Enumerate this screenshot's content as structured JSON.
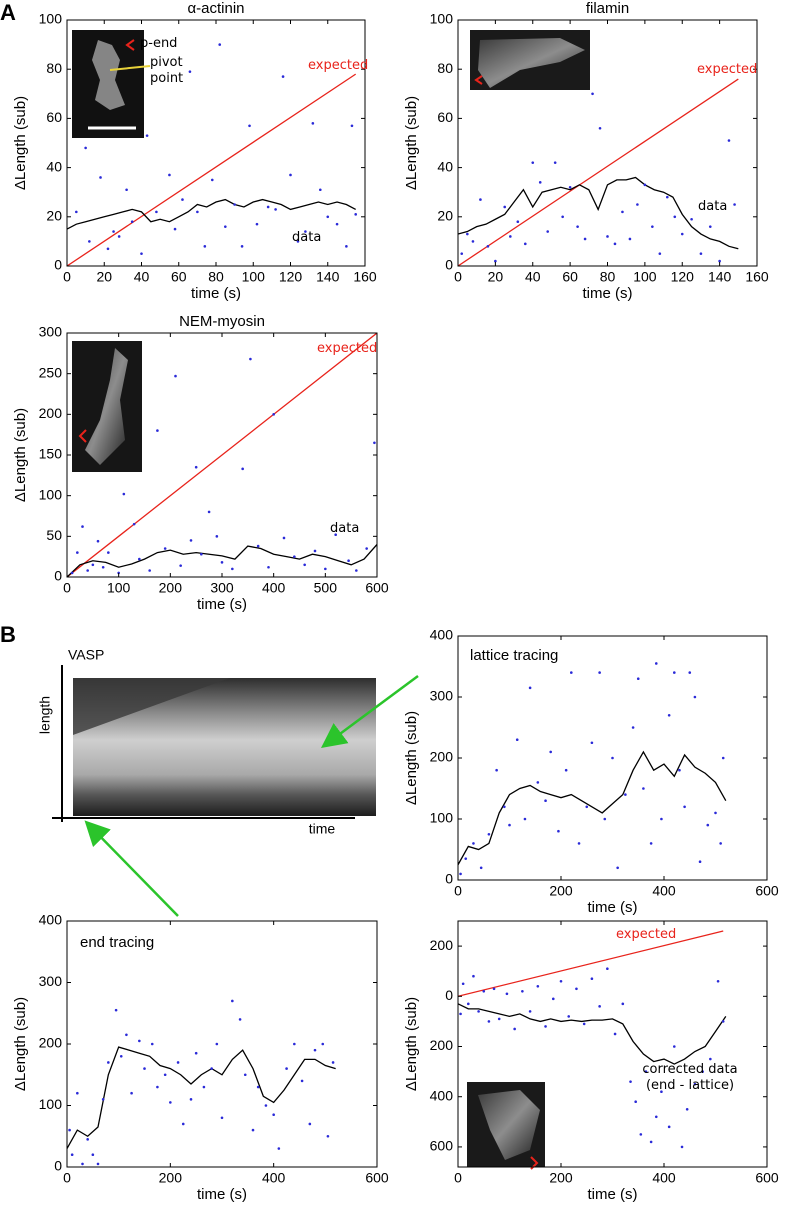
{
  "panels": {
    "A": "A",
    "B": "B"
  },
  "kymograph": {
    "title": "VASP",
    "y_label": "length",
    "x_label": "time"
  },
  "chart_data": [
    {
      "type": "line",
      "title": "α-actinin",
      "xlabel": "time (s)",
      "ylabel": "ΔLength (sub)",
      "xlim": [
        0,
        160
      ],
      "ylim": [
        0,
        100
      ],
      "xticks": [
        0,
        20,
        40,
        60,
        80,
        100,
        120,
        140,
        160
      ],
      "yticks": [
        0,
        20,
        40,
        60,
        80,
        100
      ],
      "series": [
        {
          "name": "expected",
          "color": "#e8231b",
          "x": [
            0,
            155
          ],
          "values": [
            0,
            78
          ]
        },
        {
          "name": "data",
          "color": "#000000",
          "x": [
            0,
            5,
            10,
            15,
            20,
            25,
            30,
            35,
            40,
            45,
            50,
            55,
            60,
            65,
            70,
            75,
            80,
            85,
            90,
            95,
            100,
            105,
            110,
            115,
            120,
            125,
            130,
            135,
            140,
            145,
            150,
            155
          ],
          "values": [
            15,
            17,
            18,
            19,
            20,
            21,
            22,
            23,
            22,
            18,
            19,
            18,
            20,
            22,
            25,
            24,
            26,
            27,
            25,
            24,
            26,
            27,
            26,
            25,
            23,
            24,
            25,
            26,
            25,
            26,
            25,
            23
          ]
        },
        {
          "mode": "markers",
          "color": "#2a2ad8",
          "x": [
            5,
            10,
            12,
            18,
            22,
            25,
            28,
            32,
            35,
            40,
            43,
            48,
            55,
            58,
            62,
            66,
            70,
            74,
            78,
            82,
            85,
            90,
            94,
            98,
            102,
            108,
            112,
            116,
            120,
            124,
            128,
            132,
            136,
            140,
            145,
            150,
            153,
            155
          ],
          "values": [
            22,
            48,
            10,
            36,
            7,
            14,
            12,
            31,
            18,
            5,
            53,
            22,
            37,
            15,
            27,
            79,
            22,
            8,
            35,
            90,
            16,
            25,
            8,
            57,
            17,
            24,
            23,
            77,
            37,
            10,
            14,
            58,
            31,
            20,
            17,
            8,
            57,
            21
          ]
        }
      ],
      "annotations": [
        "p-end",
        "pivot point"
      ]
    },
    {
      "type": "line",
      "title": "filamin",
      "xlabel": "time (s)",
      "ylabel": "ΔLength (sub)",
      "xlim": [
        0,
        160
      ],
      "ylim": [
        0,
        100
      ],
      "xticks": [
        0,
        20,
        40,
        60,
        80,
        100,
        120,
        140,
        160
      ],
      "yticks": [
        0,
        20,
        40,
        60,
        80,
        100
      ],
      "series": [
        {
          "name": "expected",
          "color": "#e8231b",
          "x": [
            0,
            150
          ],
          "values": [
            0,
            76
          ]
        },
        {
          "name": "data",
          "color": "#000000",
          "x": [
            0,
            5,
            10,
            15,
            20,
            25,
            30,
            35,
            40,
            45,
            50,
            55,
            60,
            65,
            70,
            75,
            80,
            85,
            90,
            95,
            100,
            105,
            110,
            115,
            120,
            125,
            130,
            135,
            140,
            145,
            150
          ],
          "values": [
            13,
            14,
            16,
            17,
            19,
            21,
            26,
            31,
            24,
            30,
            31,
            32,
            31,
            33,
            31,
            23,
            33,
            35,
            35,
            36,
            33,
            31,
            30,
            28,
            21,
            16,
            13,
            11,
            10,
            8,
            7
          ]
        },
        {
          "mode": "markers",
          "color": "#2a2ad8",
          "x": [
            2,
            5,
            8,
            12,
            16,
            20,
            25,
            28,
            32,
            36,
            40,
            44,
            48,
            52,
            56,
            60,
            64,
            68,
            72,
            76,
            80,
            84,
            88,
            92,
            96,
            100,
            104,
            108,
            112,
            116,
            120,
            125,
            130,
            135,
            140,
            145,
            148
          ],
          "values": [
            5,
            13,
            10,
            27,
            8,
            2,
            24,
            12,
            18,
            9,
            42,
            34,
            14,
            42,
            20,
            32,
            16,
            11,
            70,
            56,
            12,
            9,
            22,
            11,
            25,
            33,
            16,
            5,
            28,
            20,
            13,
            19,
            5,
            16,
            2,
            51,
            25
          ]
        }
      ]
    },
    {
      "type": "line",
      "title": "NEM-myosin",
      "xlabel": "time (s)",
      "ylabel": "ΔLength (sub)",
      "xlim": [
        0,
        600
      ],
      "ylim": [
        0,
        300
      ],
      "xticks": [
        0,
        100,
        200,
        300,
        400,
        500,
        600
      ],
      "yticks": [
        0,
        50,
        100,
        150,
        200,
        250,
        300
      ],
      "series": [
        {
          "name": "expected",
          "color": "#e8231b",
          "x": [
            0,
            600
          ],
          "values": [
            0,
            300
          ]
        },
        {
          "name": "data",
          "color": "#000000",
          "x": [
            0,
            25,
            50,
            75,
            100,
            125,
            150,
            175,
            200,
            225,
            250,
            275,
            300,
            325,
            350,
            375,
            400,
            425,
            450,
            475,
            500,
            525,
            550,
            575,
            600
          ],
          "values": [
            0,
            15,
            20,
            18,
            12,
            16,
            22,
            30,
            33,
            28,
            30,
            28,
            26,
            22,
            38,
            35,
            28,
            25,
            22,
            28,
            25,
            20,
            15,
            22,
            40
          ]
        },
        {
          "mode": "markers",
          "color": "#2a2ad8",
          "x": [
            10,
            20,
            30,
            40,
            50,
            60,
            70,
            80,
            100,
            110,
            130,
            140,
            160,
            175,
            190,
            210,
            220,
            240,
            250,
            260,
            275,
            290,
            300,
            320,
            340,
            355,
            370,
            390,
            400,
            420,
            440,
            460,
            480,
            500,
            520,
            545,
            560,
            580,
            595
          ],
          "values": [
            5,
            30,
            62,
            8,
            15,
            44,
            12,
            30,
            5,
            102,
            65,
            22,
            8,
            180,
            35,
            247,
            14,
            45,
            135,
            28,
            80,
            50,
            18,
            10,
            133,
            268,
            38,
            12,
            200,
            48,
            25,
            15,
            32,
            10,
            52,
            20,
            8,
            35,
            165
          ]
        }
      ]
    },
    {
      "type": "line",
      "title": "lattice tracing",
      "xlabel": "time (s)",
      "ylabel": "ΔLength (sub)",
      "xlim": [
        0,
        600
      ],
      "ylim": [
        0,
        400
      ],
      "xticks": [
        0,
        200,
        400,
        600
      ],
      "yticks": [
        0,
        100,
        200,
        300,
        400
      ],
      "series": [
        {
          "color": "#000000",
          "x": [
            0,
            20,
            40,
            60,
            80,
            100,
            120,
            140,
            160,
            180,
            200,
            220,
            240,
            260,
            280,
            300,
            320,
            340,
            360,
            380,
            400,
            420,
            440,
            460,
            480,
            500,
            520
          ],
          "values": [
            25,
            55,
            50,
            60,
            110,
            140,
            150,
            155,
            145,
            140,
            135,
            140,
            130,
            120,
            110,
            125,
            140,
            180,
            210,
            180,
            190,
            170,
            205,
            185,
            175,
            160,
            130
          ]
        },
        {
          "mode": "markers",
          "color": "#2a2ad8",
          "x": [
            5,
            15,
            30,
            45,
            60,
            75,
            90,
            100,
            115,
            130,
            140,
            155,
            170,
            180,
            195,
            210,
            220,
            235,
            250,
            260,
            275,
            285,
            300,
            310,
            325,
            340,
            350,
            360,
            375,
            385,
            395,
            410,
            420,
            430,
            440,
            450,
            460,
            470,
            485,
            500,
            510,
            515
          ],
          "values": [
            10,
            35,
            60,
            20,
            75,
            180,
            120,
            90,
            230,
            100,
            315,
            160,
            130,
            210,
            80,
            180,
            340,
            60,
            120,
            225,
            340,
            100,
            200,
            20,
            140,
            250,
            330,
            150,
            60,
            355,
            100,
            270,
            340,
            180,
            120,
            340,
            300,
            30,
            90,
            110,
            60,
            200
          ]
        }
      ]
    },
    {
      "type": "line",
      "title": "end tracing",
      "xlabel": "time (s)",
      "ylabel": "ΔLength (sub)",
      "xlim": [
        0,
        600
      ],
      "ylim": [
        0,
        400
      ],
      "xticks": [
        0,
        200,
        400,
        600
      ],
      "yticks": [
        0,
        100,
        200,
        300,
        400
      ],
      "series": [
        {
          "color": "#000000",
          "x": [
            0,
            20,
            40,
            60,
            80,
            100,
            120,
            140,
            160,
            180,
            200,
            220,
            240,
            260,
            280,
            300,
            320,
            340,
            360,
            380,
            400,
            420,
            440,
            460,
            480,
            500,
            520
          ],
          "values": [
            30,
            60,
            50,
            65,
            150,
            195,
            190,
            185,
            180,
            165,
            160,
            150,
            135,
            150,
            160,
            150,
            175,
            190,
            160,
            115,
            105,
            125,
            150,
            175,
            175,
            165,
            160
          ]
        },
        {
          "mode": "markers",
          "color": "#2a2ad8",
          "x": [
            5,
            10,
            20,
            30,
            40,
            50,
            60,
            70,
            80,
            95,
            105,
            115,
            125,
            140,
            150,
            165,
            175,
            190,
            200,
            215,
            225,
            240,
            250,
            265,
            280,
            290,
            300,
            320,
            335,
            345,
            360,
            370,
            385,
            400,
            410,
            425,
            440,
            455,
            470,
            480,
            495,
            505,
            515
          ],
          "values": [
            60,
            20,
            120,
            5,
            45,
            20,
            5,
            110,
            170,
            255,
            180,
            215,
            120,
            205,
            160,
            200,
            130,
            150,
            105,
            170,
            70,
            110,
            185,
            130,
            160,
            200,
            80,
            270,
            240,
            150,
            60,
            130,
            100,
            85,
            30,
            160,
            200,
            140,
            70,
            190,
            200,
            50,
            170
          ]
        }
      ]
    },
    {
      "type": "line",
      "xlabel": "time (s)",
      "ylabel": "ΔLength (sub)",
      "xlim": [
        0,
        600
      ],
      "ylim": [
        -680,
        300
      ],
      "xticks": [
        0,
        200,
        400,
        600
      ],
      "yticks": [
        200,
        0,
        {
          "value": -200,
          "label": "200"
        },
        {
          "value": -400,
          "label": "400"
        },
        {
          "value": -600,
          "label": "600"
        }
      ],
      "series": [
        {
          "name": "expected",
          "color": "#e8231b",
          "x": [
            0,
            515
          ],
          "values": [
            0,
            260
          ]
        },
        {
          "name": "corrected data (end - lattice)",
          "color": "#000000",
          "x": [
            0,
            20,
            40,
            60,
            80,
            100,
            120,
            140,
            160,
            180,
            200,
            220,
            240,
            260,
            280,
            300,
            320,
            340,
            360,
            380,
            400,
            420,
            440,
            460,
            480,
            500,
            520
          ],
          "values": [
            -30,
            -50,
            -50,
            -60,
            -70,
            -80,
            -70,
            -90,
            -100,
            -90,
            -100,
            -95,
            -100,
            -95,
            -95,
            -90,
            -110,
            -180,
            -230,
            -260,
            -250,
            -270,
            -250,
            -220,
            -200,
            -140,
            -80
          ]
        },
        {
          "mode": "markers",
          "color": "#2a2ad8",
          "x": [
            5,
            10,
            20,
            30,
            40,
            50,
            60,
            70,
            80,
            95,
            110,
            125,
            140,
            155,
            170,
            185,
            200,
            215,
            230,
            245,
            260,
            275,
            290,
            305,
            320,
            335,
            345,
            355,
            365,
            375,
            385,
            395,
            410,
            420,
            435,
            445,
            460,
            475,
            490,
            505,
            515
          ],
          "values": [
            -70,
            50,
            -30,
            80,
            -60,
            20,
            -100,
            30,
            -90,
            10,
            -130,
            20,
            -60,
            40,
            -120,
            -10,
            60,
            -80,
            30,
            -110,
            70,
            -40,
            110,
            -150,
            -30,
            -340,
            -420,
            -550,
            -300,
            -580,
            -480,
            -380,
            -520,
            -200,
            -600,
            -450,
            -350,
            -300,
            -250,
            60,
            -100
          ]
        }
      ]
    }
  ]
}
